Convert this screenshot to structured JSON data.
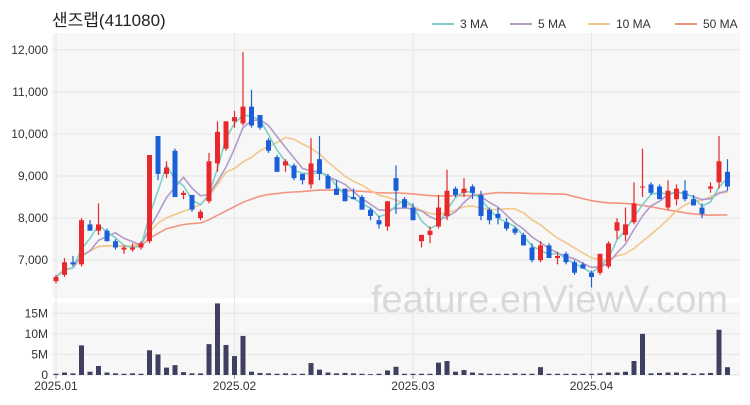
{
  "chart_data": {
    "type": "candlestick",
    "title": "샌즈랩(411080)",
    "watermark": "feature.enViewV.com",
    "colors": {
      "up": "#e8282b",
      "down": "#1a5fd8",
      "volume": "#3f3f5f",
      "ma3": "#7ecfc9",
      "ma5": "#b29ac9",
      "ma10": "#f3c68b",
      "ma50": "#f2957f",
      "panel_bg": "#f7f7f7"
    },
    "legend": [
      {
        "label": "3 MA",
        "color": "#7ecfc9"
      },
      {
        "label": "5 MA",
        "color": "#b29ac9"
      },
      {
        "label": "10 MA",
        "color": "#f3c68b"
      },
      {
        "label": "50 MA",
        "color": "#f2957f"
      }
    ],
    "price_axis": {
      "ticks": [
        "7,000",
        "8,000",
        "9,000",
        "10,000",
        "11,000",
        "12,000"
      ],
      "tick_values": [
        7000,
        8000,
        9000,
        10000,
        11000,
        12000
      ],
      "ylim": [
        6100,
        12400
      ]
    },
    "volume_axis": {
      "ticks": [
        "0",
        "5M",
        "10M",
        "15M"
      ],
      "tick_values": [
        0,
        5,
        10,
        15
      ],
      "ylim": [
        0,
        17.5
      ],
      "unit": "M"
    },
    "x_ticks": [
      {
        "label": "2025.01",
        "index": 0
      },
      {
        "label": "2025.02",
        "index": 21
      },
      {
        "label": "2025.03",
        "index": 42
      },
      {
        "label": "2025.04",
        "index": 63
      }
    ],
    "candles": [
      [
        6500,
        6650,
        6450,
        6600,
        0.3
      ],
      [
        6650,
        7050,
        6600,
        6950,
        0.6
      ],
      [
        6950,
        7100,
        6850,
        6900,
        0.4
      ],
      [
        6900,
        8000,
        6850,
        7950,
        7.2
      ],
      [
        7850,
        7950,
        7700,
        7700,
        0.8
      ],
      [
        7700,
        8350,
        7600,
        7850,
        2.2
      ],
      [
        7700,
        7750,
        7450,
        7450,
        0.6
      ],
      [
        7450,
        7500,
        7250,
        7300,
        0.4
      ],
      [
        7250,
        7350,
        7150,
        7300,
        0.3
      ],
      [
        7250,
        7400,
        7200,
        7300,
        0.4
      ],
      [
        7300,
        7450,
        7250,
        7400,
        0.3
      ],
      [
        7450,
        9500,
        7400,
        9500,
        6.0
      ],
      [
        9950,
        9950,
        8900,
        9050,
        5.0
      ],
      [
        9050,
        9350,
        8950,
        9200,
        1.8
      ],
      [
        9600,
        9650,
        8500,
        8500,
        2.4
      ],
      [
        8550,
        8650,
        8450,
        8600,
        0.7
      ],
      [
        8550,
        8500,
        8150,
        8200,
        0.4
      ],
      [
        8000,
        8200,
        7950,
        8150,
        0.4
      ],
      [
        8400,
        9550,
        8350,
        9350,
        7.5
      ],
      [
        9300,
        10300,
        9100,
        10050,
        17.4
      ],
      [
        9650,
        10300,
        9600,
        10300,
        7.3
      ],
      [
        10300,
        10550,
        10150,
        10400,
        4.6
      ],
      [
        10250,
        11950,
        10200,
        10650,
        9.5
      ],
      [
        10650,
        11050,
        10150,
        10200,
        0.8
      ],
      [
        10450,
        10450,
        10100,
        10150,
        0.5
      ],
      [
        9850,
        9900,
        9550,
        9600,
        0.4
      ],
      [
        9450,
        9500,
        9100,
        9100,
        0.3
      ],
      [
        9250,
        9400,
        9100,
        9350,
        0.4
      ],
      [
        9250,
        9300,
        8900,
        8950,
        0.3
      ],
      [
        9050,
        9050,
        8800,
        8900,
        0.3
      ],
      [
        8800,
        9900,
        8700,
        9300,
        2.9
      ],
      [
        9400,
        9950,
        8900,
        9050,
        1.3
      ],
      [
        9000,
        9050,
        8700,
        8700,
        0.6
      ],
      [
        8700,
        8900,
        8550,
        8550,
        0.4
      ],
      [
        8700,
        8700,
        8400,
        8400,
        0.5
      ],
      [
        8500,
        8700,
        8450,
        8450,
        0.4
      ],
      [
        8500,
        8550,
        8200,
        8200,
        0.3
      ],
      [
        8200,
        8250,
        7950,
        8050,
        0.2
      ],
      [
        7950,
        8050,
        7750,
        7850,
        0.3
      ],
      [
        7800,
        8400,
        7700,
        8400,
        1.1
      ],
      [
        8950,
        9250,
        8100,
        8650,
        2.0
      ],
      [
        8450,
        8500,
        8250,
        8250,
        0.3
      ],
      [
        8250,
        8350,
        7950,
        7950,
        0.3
      ],
      [
        7450,
        7600,
        7300,
        7600,
        0.3
      ],
      [
        7600,
        7800,
        7400,
        7700,
        0.3
      ],
      [
        7800,
        8550,
        7750,
        8250,
        3.0
      ],
      [
        8050,
        9150,
        7950,
        8650,
        3.4
      ],
      [
        8700,
        8750,
        8500,
        8550,
        0.8
      ],
      [
        8600,
        8950,
        8500,
        8700,
        1.2
      ],
      [
        8750,
        8800,
        8450,
        8600,
        0.6
      ],
      [
        8550,
        8650,
        7950,
        8050,
        0.4
      ],
      [
        8200,
        8250,
        7850,
        7950,
        0.3
      ],
      [
        8100,
        8250,
        7850,
        8000,
        0.3
      ],
      [
        7900,
        8000,
        7700,
        7750,
        0.3
      ],
      [
        7750,
        7800,
        7600,
        7650,
        0.4
      ],
      [
        7600,
        7650,
        7350,
        7350,
        0.3
      ],
      [
        7300,
        7400,
        6950,
        7000,
        0.3
      ],
      [
        7000,
        7450,
        6950,
        7350,
        1.9
      ],
      [
        7350,
        7400,
        7050,
        7050,
        0.3
      ],
      [
        7050,
        7200,
        6900,
        7100,
        0.3
      ],
      [
        7150,
        7200,
        6900,
        6950,
        0.3
      ],
      [
        6950,
        7000,
        6650,
        6700,
        0.3
      ],
      [
        6900,
        6950,
        6800,
        6800,
        0.3
      ],
      [
        6700,
        6750,
        6350,
        6600,
        0.3
      ],
      [
        6700,
        7150,
        6650,
        7150,
        0.4
      ],
      [
        6850,
        7450,
        6800,
        7400,
        0.6
      ],
      [
        7700,
        8000,
        7500,
        7900,
        0.6
      ],
      [
        7600,
        8250,
        7450,
        7850,
        0.8
      ],
      [
        7900,
        8850,
        7850,
        8350,
        3.4
      ],
      [
        8750,
        9650,
        8500,
        8750,
        10.0
      ],
      [
        8800,
        8850,
        8550,
        8600,
        0.4
      ],
      [
        8750,
        8800,
        8450,
        8450,
        0.5
      ],
      [
        8250,
        8900,
        8200,
        8650,
        0.6
      ],
      [
        8450,
        8800,
        8300,
        8700,
        0.6
      ],
      [
        8650,
        8900,
        8400,
        8450,
        0.5
      ],
      [
        8450,
        8550,
        8300,
        8300,
        0.3
      ],
      [
        8250,
        8350,
        8000,
        8100,
        0.4
      ],
      [
        8700,
        8850,
        8600,
        8750,
        0.5
      ],
      [
        8850,
        9950,
        8700,
        9350,
        11.0
      ],
      [
        9100,
        9400,
        8650,
        8750,
        1.9
      ]
    ]
  }
}
